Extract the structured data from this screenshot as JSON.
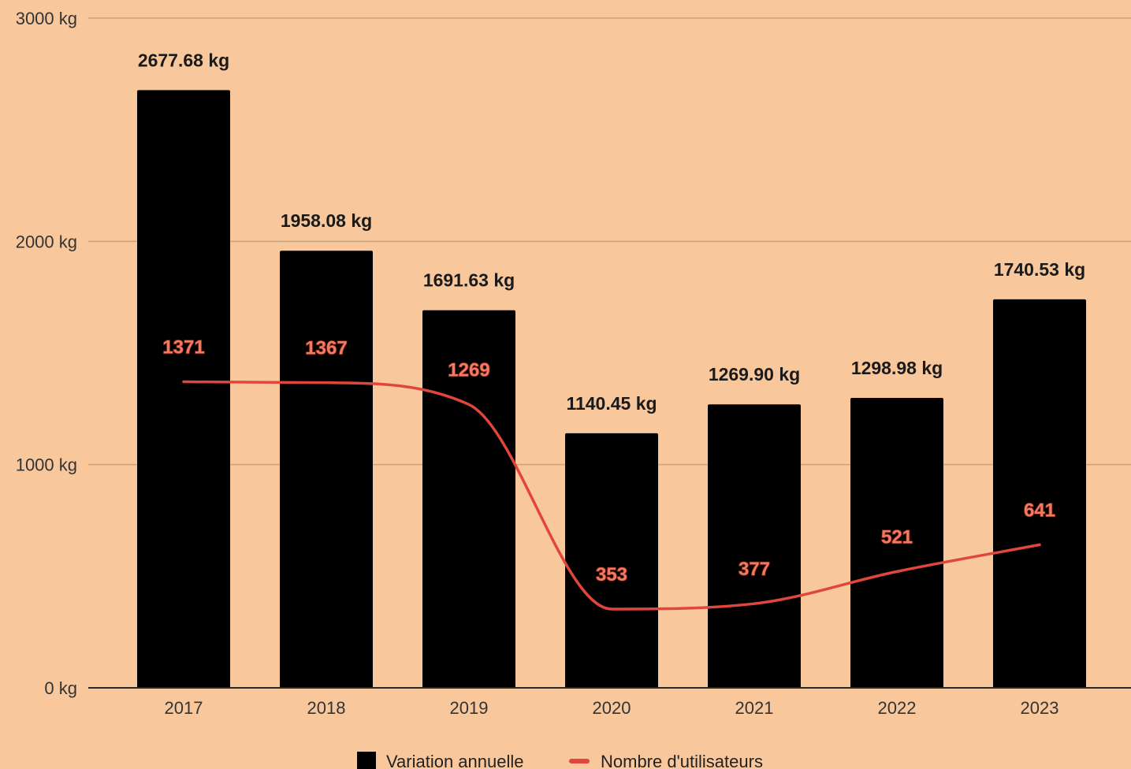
{
  "chart_data": {
    "type": "bar",
    "categories": [
      "2017",
      "2018",
      "2019",
      "2020",
      "2021",
      "2022",
      "2023"
    ],
    "series": [
      {
        "name": "Variation annuelle",
        "kind": "bar",
        "values": [
          2677.68,
          1958.08,
          1691.63,
          1140.45,
          1269.9,
          1298.98,
          1740.53
        ],
        "labels": [
          "2677.68 kg",
          "1958.08 kg",
          "1691.63 kg",
          "1140.45 kg",
          "1269.90 kg",
          "1298.98 kg",
          "1740.53 kg"
        ],
        "color": "#000000"
      },
      {
        "name": "Nombre d'utilisateurs",
        "kind": "line",
        "smooth": true,
        "values": [
          1371,
          1367,
          1269,
          353,
          377,
          521,
          641
        ],
        "labels": [
          "1371",
          "1367",
          "1269",
          "353",
          "377",
          "521",
          "641"
        ],
        "color": "#e0463c"
      }
    ],
    "ylim": [
      0,
      3000
    ],
    "yticks": [
      0,
      1000,
      2000,
      3000
    ],
    "ytick_labels": [
      "0 kg",
      "1000 kg",
      "2000 kg",
      "3000 kg"
    ],
    "grid": true,
    "legend_position": "bottom",
    "background": "#f8c89c",
    "gridline_color": "#c9a27e"
  }
}
